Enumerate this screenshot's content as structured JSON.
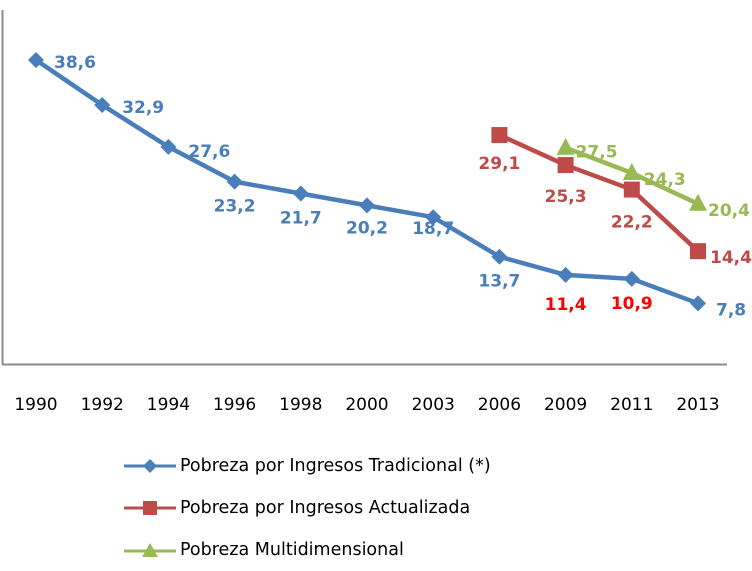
{
  "chart_data": {
    "type": "line",
    "title": "",
    "xlabel": "",
    "ylabel": "",
    "ylim": [
      0,
      40
    ],
    "grid": false,
    "legend_position": "bottom",
    "categories": [
      "1990",
      "1992",
      "1994",
      "1996",
      "1998",
      "2000",
      "2003",
      "2006",
      "2009",
      "2011",
      "2013"
    ],
    "series": [
      {
        "name": "Pobreza por Ingresos Tradicional (*)",
        "color": "#4a7ebb",
        "marker": "diamond",
        "values": [
          38.6,
          32.9,
          27.6,
          23.2,
          21.7,
          20.2,
          18.7,
          13.7,
          11.4,
          10.9,
          7.8
        ],
        "labels": [
          "38,6",
          "32,9",
          "27,6",
          "23,2",
          "21,7",
          "20,2",
          "18,7",
          "13,7",
          "11,4",
          "10,9",
          "7,8"
        ],
        "label_colors": [
          "#4a7ebb",
          "#4a7ebb",
          "#4a7ebb",
          "#4a7ebb",
          "#4a7ebb",
          "#4a7ebb",
          "#4a7ebb",
          "#4a7ebb",
          "#ff0000",
          "#ff0000",
          "#4a7ebb"
        ]
      },
      {
        "name": "Pobreza por Ingresos Actualizada",
        "color": "#be4b48",
        "marker": "square",
        "values": [
          null,
          null,
          null,
          null,
          null,
          null,
          null,
          29.1,
          25.3,
          22.2,
          14.4
        ],
        "labels": [
          null,
          null,
          null,
          null,
          null,
          null,
          null,
          "29,1",
          "25,3",
          "22,2",
          "14,4"
        ],
        "label_colors": [
          null,
          null,
          null,
          null,
          null,
          null,
          null,
          "#be4b48",
          "#be4b48",
          "#be4b48",
          "#be4b48"
        ]
      },
      {
        "name": "Pobreza Multidimensional",
        "color": "#98b954",
        "marker": "triangle",
        "values": [
          null,
          null,
          null,
          null,
          null,
          null,
          null,
          null,
          27.5,
          24.3,
          20.4
        ],
        "labels": [
          null,
          null,
          null,
          null,
          null,
          null,
          null,
          null,
          "27,5",
          "24,3",
          "20,4"
        ],
        "label_colors": [
          null,
          null,
          null,
          null,
          null,
          null,
          null,
          null,
          "#98b954",
          "#98b954",
          "#98b954"
        ]
      }
    ]
  }
}
